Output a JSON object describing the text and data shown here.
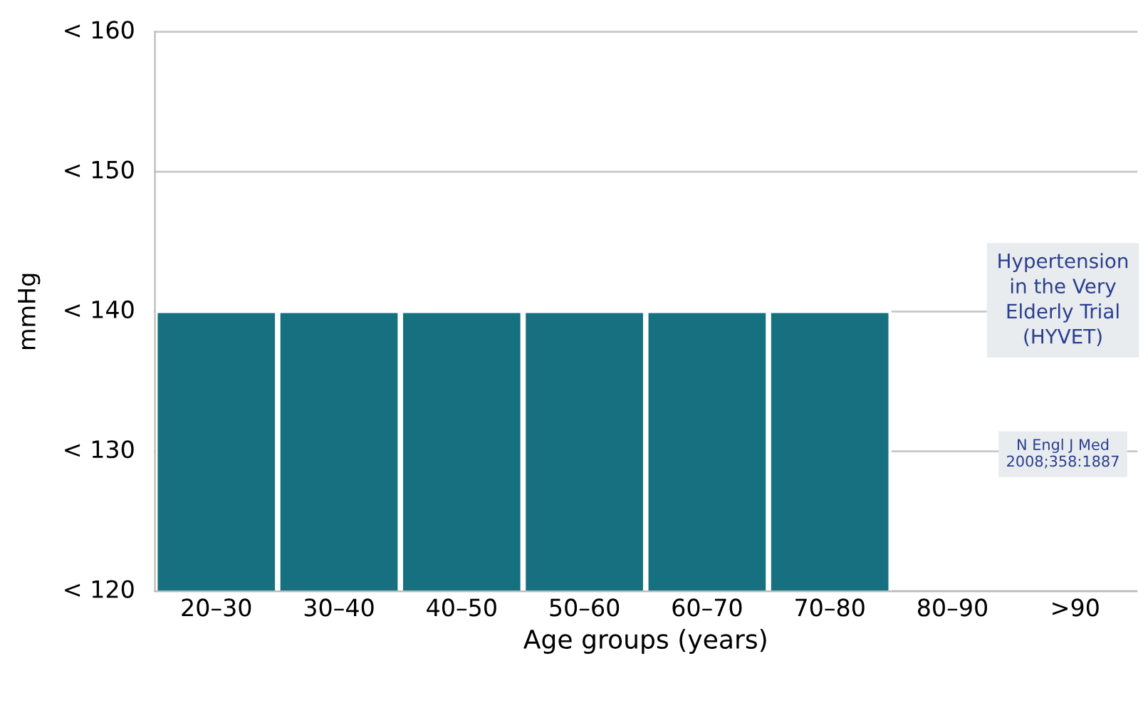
{
  "chart_data": {
    "type": "bar",
    "xlabel": "Age groups (years)",
    "ylabel": "mmHg",
    "categories": [
      "20–30",
      "30–40",
      "40–50",
      "50–60",
      "60–70",
      "70–80",
      "80–90",
      ">90"
    ],
    "values": [
      140,
      140,
      140,
      140,
      140,
      140,
      null,
      null
    ],
    "color": "#16707f",
    "ylim": [
      120,
      160
    ],
    "ref_lines": [
      {
        "axis": "y",
        "value": 120,
        "label": "< 120",
        "color": "#c8c8c8"
      },
      {
        "axis": "y",
        "value": 130,
        "label": "< 130",
        "color": "#c8c8c8"
      },
      {
        "axis": "y",
        "value": 140,
        "label": "< 140",
        "color": "#c8c8c8"
      },
      {
        "axis": "y",
        "value": 150,
        "label": "< 150",
        "color": "#c8c8c8"
      },
      {
        "axis": "y",
        "value": 160,
        "label": "< 160",
        "color": "#c8c8c8"
      }
    ],
    "annotations": [
      "Hypertension in the Very Elderly Trial (HYVET)",
      "N Engl J Med 2008;358:1887"
    ]
  }
}
